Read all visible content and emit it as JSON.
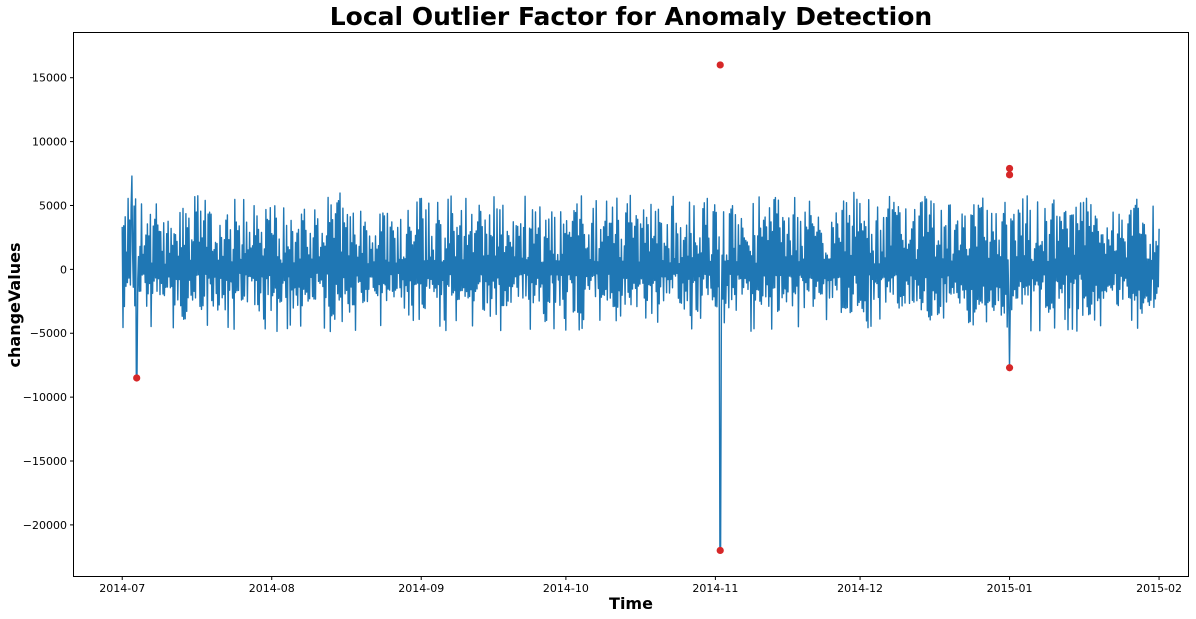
{
  "chart_data": {
    "type": "line",
    "title": "Local Outlier Factor for Anomaly Detection",
    "xlabel": "Time",
    "ylabel": "changeValues",
    "xlim": [
      "2014-06-21",
      "2015-02-07"
    ],
    "ylim": [
      -24000,
      18500
    ],
    "x_ticks": [
      "2014-07",
      "2014-08",
      "2014-09",
      "2014-10",
      "2014-11",
      "2014-12",
      "2015-01",
      "2015-02"
    ],
    "y_ticks": [
      15000,
      10000,
      5000,
      0,
      -5000,
      -10000,
      -15000,
      -20000
    ],
    "y_tick_labels": [
      "15000",
      "10000",
      "5000",
      "0",
      "−5000",
      "−10000",
      "−15000",
      "−20000"
    ],
    "x_range": [
      "2014-07-01",
      "2015-02-01"
    ],
    "grid": false,
    "series": [
      {
        "color": "#1f77b4",
        "description": "hourly change values, mostly oscillating between about -4500 and +5500"
      }
    ],
    "anomalies": {
      "color": "#d62728",
      "points": [
        {
          "x": "2014-07-04",
          "y": -8500
        },
        {
          "x": "2014-11-02",
          "y": 16000
        },
        {
          "x": "2014-11-02",
          "y": -22000
        },
        {
          "x": "2015-01-01",
          "y": 7900
        },
        {
          "x": "2015-01-01",
          "y": 7400
        },
        {
          "x": "2015-01-01",
          "y": -7700
        }
      ]
    },
    "spikes": [
      {
        "x": "2014-07-03",
        "y": 7300
      },
      {
        "x": "2014-07-04",
        "y": -8500
      },
      {
        "x": "2014-11-02",
        "y": 16000
      },
      {
        "x": "2014-11-02",
        "y": -22000
      },
      {
        "x": "2015-01-01",
        "y": 7900
      },
      {
        "x": "2015-01-01",
        "y": -7700
      }
    ]
  }
}
